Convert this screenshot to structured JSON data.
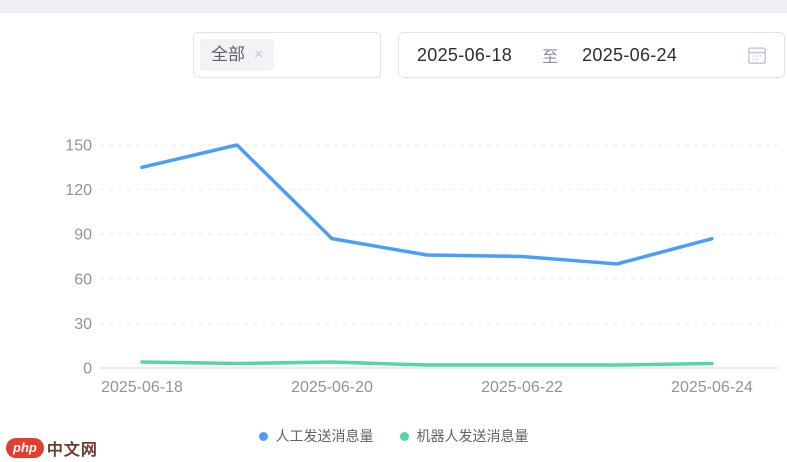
{
  "filters": {
    "tag_select": {
      "tag_label": "全部",
      "remove_icon": "×"
    },
    "date_range": {
      "start": "2025-06-18",
      "separator": "至",
      "end": "2025-06-24"
    }
  },
  "chart_data": {
    "type": "line",
    "title": "",
    "xlabel": "",
    "ylabel": "",
    "categories": [
      "2025-06-18",
      "2025-06-19",
      "2025-06-20",
      "2025-06-21",
      "2025-06-22",
      "2025-06-23",
      "2025-06-24"
    ],
    "series": [
      {
        "name": "人工发送消息量",
        "color": "#4b9ef8",
        "values": [
          135,
          150,
          87,
          76,
          75,
          70,
          87
        ]
      },
      {
        "name": "机器人发送消息量",
        "color": "#56d79e",
        "values": [
          4,
          3,
          4,
          2,
          2,
          2,
          3
        ]
      }
    ],
    "ylim": [
      0,
      150
    ],
    "yticks": [
      0,
      30,
      60,
      90,
      120,
      150
    ],
    "xtick_labels": [
      "2025-06-18",
      "2025-06-20",
      "2025-06-22",
      "2025-06-24"
    ],
    "grid": "horizontal-dashed",
    "legend_position": "bottom"
  },
  "watermark": {
    "badge": "php",
    "text": "中文网",
    "badge_color": "#e23d2d"
  }
}
